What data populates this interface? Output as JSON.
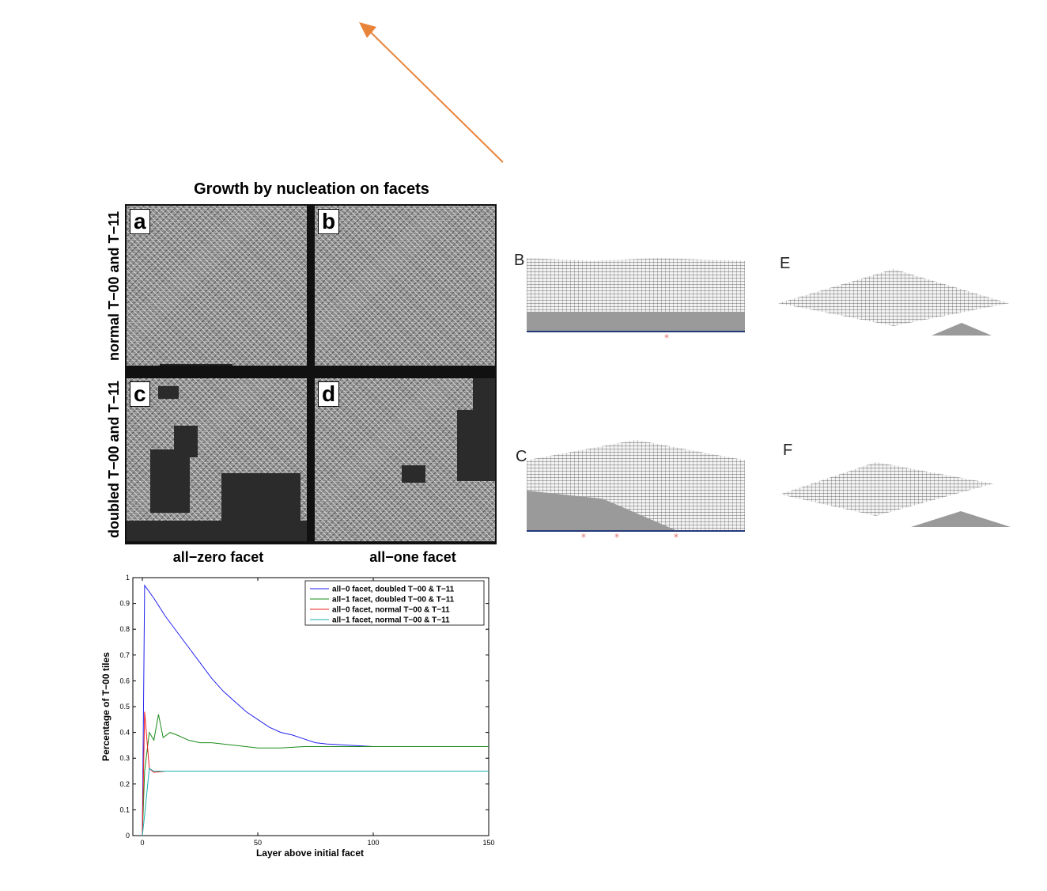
{
  "figure_title": "Growth by nucleation on facets",
  "panels": [
    "a",
    "b",
    "c",
    "d"
  ],
  "row_labels": [
    "normal T−00 and T−11",
    "doubled T−00 and T−11"
  ],
  "col_labels": [
    "all−zero facet",
    "all−one facet"
  ],
  "sim_labels": [
    "B",
    "C",
    "E",
    "F"
  ],
  "nucleation_marker": "*",
  "colors": {
    "arrow": "#e8843a"
  },
  "chart_data": {
    "type": "line",
    "xlabel": "Layer above initial facet",
    "ylabel": "Percentage of T−00 tiles",
    "xlim": [
      0,
      150
    ],
    "ylim": [
      0,
      1
    ],
    "xticks": [
      "0",
      "50",
      "100",
      "150"
    ],
    "yticks": [
      "0",
      "0.1",
      "0.2",
      "0.3",
      "0.4",
      "0.5",
      "0.6",
      "0.7",
      "0.8",
      "0.9",
      "1"
    ],
    "legend_position": "top-right",
    "series": [
      {
        "name": "all−0 facet, doubled T−00 & T−11",
        "color": "#2222ee",
        "points": [
          [
            0,
            0
          ],
          [
            1,
            0.97
          ],
          [
            5,
            0.92
          ],
          [
            10,
            0.85
          ],
          [
            15,
            0.79
          ],
          [
            20,
            0.73
          ],
          [
            25,
            0.67
          ],
          [
            30,
            0.61
          ],
          [
            35,
            0.56
          ],
          [
            40,
            0.52
          ],
          [
            45,
            0.48
          ],
          [
            50,
            0.45
          ],
          [
            55,
            0.42
          ],
          [
            60,
            0.4
          ],
          [
            65,
            0.39
          ],
          [
            70,
            0.375
          ],
          [
            75,
            0.36
          ],
          [
            80,
            0.355
          ],
          [
            90,
            0.35
          ],
          [
            100,
            0.345
          ],
          [
            110,
            0.345
          ],
          [
            120,
            0.345
          ],
          [
            130,
            0.345
          ],
          [
            140,
            0.345
          ],
          [
            150,
            0.345
          ]
        ]
      },
      {
        "name": "all−1 facet, doubled T−00 & T−11",
        "color": "#1a8c1a",
        "points": [
          [
            0,
            0
          ],
          [
            1,
            0.25
          ],
          [
            3,
            0.4
          ],
          [
            5,
            0.37
          ],
          [
            7,
            0.47
          ],
          [
            9,
            0.38
          ],
          [
            12,
            0.4
          ],
          [
            15,
            0.39
          ],
          [
            20,
            0.37
          ],
          [
            25,
            0.36
          ],
          [
            30,
            0.36
          ],
          [
            40,
            0.35
          ],
          [
            50,
            0.34
          ],
          [
            60,
            0.34
          ],
          [
            70,
            0.345
          ],
          [
            80,
            0.345
          ],
          [
            90,
            0.345
          ],
          [
            100,
            0.345
          ],
          [
            110,
            0.345
          ],
          [
            120,
            0.345
          ],
          [
            130,
            0.345
          ],
          [
            140,
            0.345
          ],
          [
            150,
            0.345
          ]
        ]
      },
      {
        "name": "all−0 facet, normal T−00 & T−11",
        "color": "#ee2222",
        "points": [
          [
            0,
            0
          ],
          [
            1,
            0.48
          ],
          [
            3,
            0.26
          ],
          [
            5,
            0.245
          ],
          [
            10,
            0.25
          ],
          [
            20,
            0.25
          ],
          [
            40,
            0.25
          ],
          [
            60,
            0.25
          ],
          [
            80,
            0.25
          ],
          [
            100,
            0.25
          ],
          [
            120,
            0.25
          ],
          [
            150,
            0.25
          ]
        ]
      },
      {
        "name": "all−1 facet, normal T−00 & T−11",
        "color": "#19b0b0",
        "points": [
          [
            0,
            0
          ],
          [
            1,
            0.08
          ],
          [
            3,
            0.26
          ],
          [
            5,
            0.25
          ],
          [
            10,
            0.25
          ],
          [
            20,
            0.25
          ],
          [
            40,
            0.25
          ],
          [
            60,
            0.25
          ],
          [
            80,
            0.25
          ],
          [
            100,
            0.25
          ],
          [
            120,
            0.25
          ],
          [
            150,
            0.25
          ]
        ]
      }
    ]
  }
}
